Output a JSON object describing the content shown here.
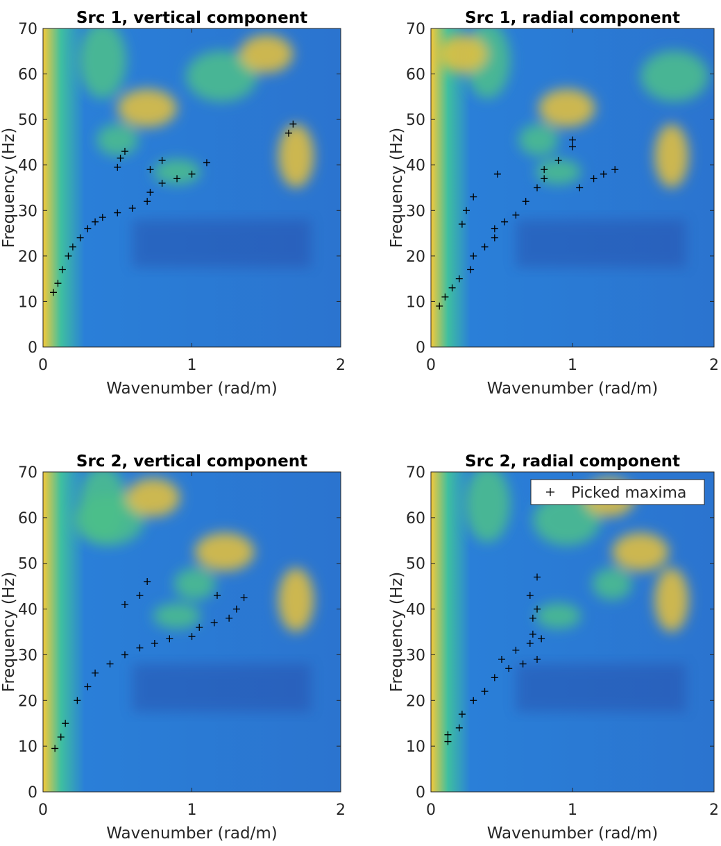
{
  "chart_data": [
    {
      "type": "scatter",
      "title": "Src 1, vertical component",
      "xlabel": "Wavenumber (rad/m)",
      "ylabel": "Frequency (Hz)",
      "xlim": [
        0,
        2
      ],
      "ylim": [
        0,
        70
      ],
      "xticks": [
        0,
        1,
        2
      ],
      "yticks": [
        0,
        10,
        20,
        30,
        40,
        50,
        60,
        70
      ],
      "series": [
        {
          "color": "#000000",
          "marker": "+",
          "x": [
            0.07,
            0.1,
            0.13,
            0.17,
            0.2,
            0.25,
            0.3,
            0.35,
            0.4,
            0.5,
            0.6,
            0.7,
            0.72,
            0.8,
            0.9,
            1.0,
            1.1,
            0.5,
            0.52,
            0.55,
            0.72,
            0.8,
            1.65,
            1.68
          ],
          "values": [
            12,
            14,
            17,
            20,
            22,
            24,
            26,
            27.5,
            28.5,
            29.5,
            30.5,
            32,
            34,
            36,
            37,
            38,
            40.5,
            39.5,
            41.5,
            43,
            39,
            41,
            47,
            49
          ]
        }
      ]
    },
    {
      "type": "scatter",
      "title": "Src 1, radial component",
      "xlabel": "Wavenumber (rad/m)",
      "ylabel": "Frequency (Hz)",
      "xlim": [
        0,
        2
      ],
      "ylim": [
        0,
        70
      ],
      "xticks": [
        0,
        1,
        2
      ],
      "yticks": [
        0,
        10,
        20,
        30,
        40,
        50,
        60,
        70
      ],
      "series": [
        {
          "color": "#000000",
          "marker": "+",
          "x": [
            0.06,
            0.1,
            0.15,
            0.2,
            0.28,
            0.3,
            0.38,
            0.45,
            0.45,
            0.52,
            0.6,
            0.67,
            0.75,
            0.8,
            0.8,
            0.9,
            1.0,
            1.0,
            0.22,
            0.25,
            0.3,
            0.47,
            1.05,
            1.15,
            1.22,
            1.3
          ],
          "values": [
            9,
            11,
            13,
            15,
            17,
            20,
            22,
            24,
            26,
            27.5,
            29,
            32,
            35,
            37,
            39,
            41,
            44,
            45.5,
            27,
            30,
            33,
            38,
            35,
            37,
            38,
            39
          ]
        }
      ]
    },
    {
      "type": "scatter",
      "title": "Src 2, vertical component",
      "xlabel": "Wavenumber (rad/m)",
      "ylabel": "Frequency (Hz)",
      "xlim": [
        0,
        2
      ],
      "ylim": [
        0,
        70
      ],
      "xticks": [
        0,
        1,
        2
      ],
      "yticks": [
        0,
        10,
        20,
        30,
        40,
        50,
        60,
        70
      ],
      "series": [
        {
          "color": "#000000",
          "marker": "+",
          "x": [
            0.08,
            0.12,
            0.15,
            0.23,
            0.3,
            0.35,
            0.45,
            0.55,
            0.65,
            0.75,
            0.85,
            1.0,
            1.05,
            1.15,
            1.25,
            1.3,
            1.35,
            0.55,
            0.65,
            0.7,
            1.17
          ],
          "values": [
            9.5,
            12,
            15,
            20,
            23,
            26,
            28,
            30,
            31.5,
            32.5,
            33.5,
            34,
            36,
            37,
            38,
            40,
            42.5,
            41,
            43,
            46,
            43
          ]
        }
      ]
    },
    {
      "type": "scatter",
      "title": "Src 2, radial component",
      "xlabel": "Wavenumber (rad/m)",
      "ylabel": "Frequency (Hz)",
      "xlim": [
        0,
        2
      ],
      "ylim": [
        0,
        70
      ],
      "xticks": [
        0,
        1,
        2
      ],
      "yticks": [
        0,
        10,
        20,
        30,
        40,
        50,
        60,
        70
      ],
      "legend": "upper right",
      "series": [
        {
          "name": "Picked maxima",
          "color": "#000000",
          "marker": "+",
          "x": [
            0.12,
            0.12,
            0.2,
            0.22,
            0.3,
            0.38,
            0.45,
            0.55,
            0.65,
            0.75,
            0.5,
            0.6,
            0.7,
            0.78,
            0.72,
            0.72,
            0.75,
            0.7,
            0.75
          ],
          "values": [
            11,
            12.5,
            14,
            17,
            20,
            22,
            25,
            27,
            28,
            29,
            29,
            31,
            32.5,
            33.5,
            34.5,
            38,
            40,
            43,
            47
          ]
        }
      ]
    }
  ]
}
